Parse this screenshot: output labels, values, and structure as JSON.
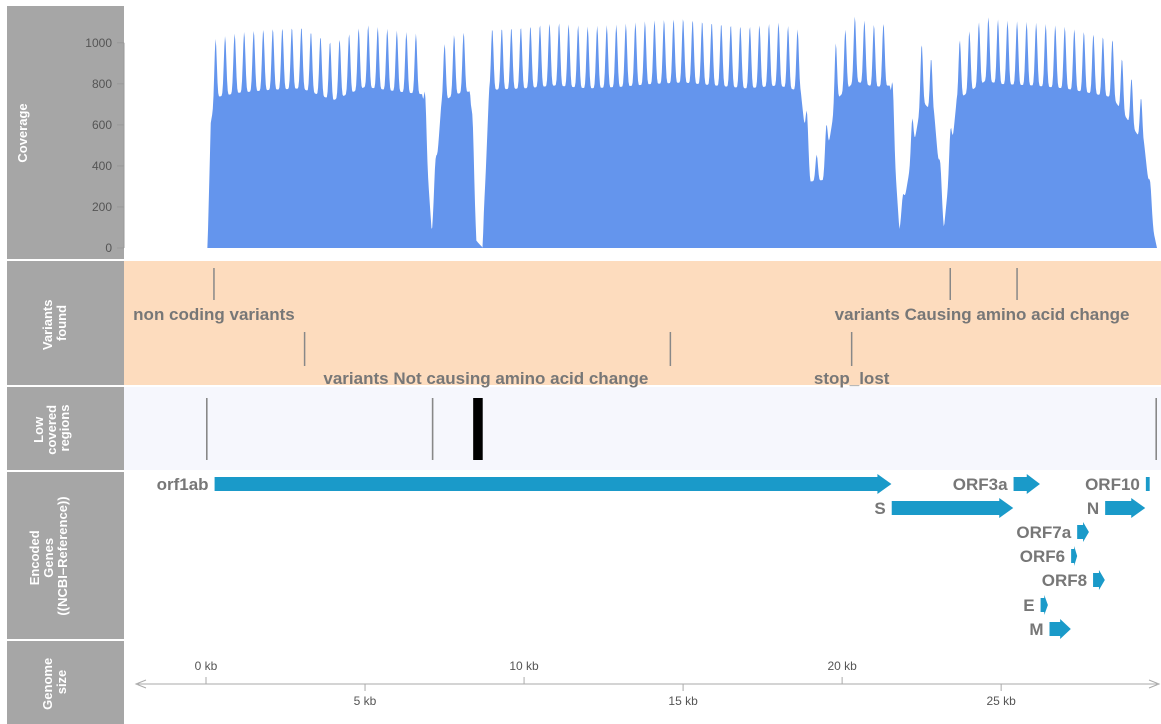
{
  "chart_data": {
    "type": "genome-track",
    "genome_length_kb": 29.9,
    "tracks": [
      {
        "id": "coverage",
        "label": "Coverage"
      },
      {
        "id": "variants",
        "label": "Variants found"
      },
      {
        "id": "lowcov",
        "label": "Low covered regions"
      },
      {
        "id": "genes",
        "label": "Encoded Genes (NCBI–Reference)"
      },
      {
        "id": "axis",
        "label": "Genome size"
      }
    ],
    "coverage": {
      "yticks": [
        0,
        200,
        400,
        600,
        800,
        1000
      ],
      "ylim": [
        0,
        1150
      ],
      "color": "#6495ED",
      "profile": [
        [
          0.0,
          0
        ],
        [
          0.05,
          0
        ],
        [
          0.15,
          850
        ],
        [
          0.3,
          1020
        ],
        [
          1,
          1050
        ],
        [
          2,
          1070
        ],
        [
          3,
          1080
        ],
        [
          4,
          1000
        ],
        [
          5,
          1090
        ],
        [
          6,
          1060
        ],
        [
          6.8,
          1040
        ],
        [
          7.1,
          100
        ],
        [
          7.4,
          980
        ],
        [
          7.8,
          1040
        ],
        [
          8.3,
          1060
        ],
        [
          8.5,
          50
        ],
        [
          8.7,
          0
        ],
        [
          8.9,
          1070
        ],
        [
          10,
          1080
        ],
        [
          11,
          1100
        ],
        [
          12,
          1080
        ],
        [
          13,
          1090
        ],
        [
          14,
          1110
        ],
        [
          15,
          1120
        ],
        [
          16,
          1100
        ],
        [
          17,
          1080
        ],
        [
          18,
          1100
        ],
        [
          18.7,
          1060
        ],
        [
          19,
          450
        ],
        [
          19.4,
          460
        ],
        [
          19.8,
          1000
        ],
        [
          20.4,
          1130
        ],
        [
          21,
          1090
        ],
        [
          21.5,
          1100
        ],
        [
          21.8,
          120
        ],
        [
          22.1,
          500
        ],
        [
          22.5,
          1000
        ],
        [
          22.9,
          900
        ],
        [
          23.2,
          130
        ],
        [
          23.6,
          1000
        ],
        [
          24.5,
          1130
        ],
        [
          25,
          1110
        ],
        [
          26,
          1100
        ],
        [
          27,
          1080
        ],
        [
          28.5,
          1020
        ],
        [
          29.5,
          700
        ],
        [
          29.8,
          100
        ],
        [
          29.9,
          0
        ]
      ]
    },
    "variants": {
      "markers": [
        {
          "pos_kb": 0.25,
          "row": 1
        },
        {
          "pos_kb": 3.1,
          "row": 2
        },
        {
          "pos_kb": 14.6,
          "row": 2
        },
        {
          "pos_kb": 20.3,
          "row": 2
        },
        {
          "pos_kb": 23.4,
          "row": 1
        },
        {
          "pos_kb": 25.5,
          "row": 1
        }
      ],
      "labels": [
        {
          "text": "non coding variants",
          "pos_kb": 0.25,
          "row": 1,
          "anchor": "middle"
        },
        {
          "text": "variants Not causing amino acid change",
          "pos_kb": 8.8,
          "row": 2,
          "anchor": "middle"
        },
        {
          "text": "variants Causing amino acid change",
          "pos_kb": 24.4,
          "row": 1,
          "anchor": "middle"
        },
        {
          "text": "stop_lost",
          "pos_kb": 20.3,
          "row": 2,
          "anchor": "middle"
        }
      ]
    },
    "low_covered_regions": [
      {
        "start_kb": 0.0,
        "end_kb": 0.05
      },
      {
        "start_kb": 7.1,
        "end_kb": 7.15
      },
      {
        "start_kb": 8.4,
        "end_kb": 8.7
      },
      {
        "start_kb": 29.85,
        "end_kb": 29.9
      }
    ],
    "genes": [
      {
        "name": "orf1ab",
        "start_kb": 0.27,
        "end_kb": 21.55,
        "row": 0,
        "label_side": "left"
      },
      {
        "name": "S",
        "start_kb": 21.56,
        "end_kb": 25.38,
        "row": 1,
        "label_side": "left"
      },
      {
        "name": "ORF3a",
        "start_kb": 25.39,
        "end_kb": 26.22,
        "row": 0,
        "label_side": "left"
      },
      {
        "name": "E",
        "start_kb": 26.24,
        "end_kb": 26.47,
        "row": 5,
        "label_side": "left"
      },
      {
        "name": "M",
        "start_kb": 26.52,
        "end_kb": 27.19,
        "row": 6,
        "label_side": "left"
      },
      {
        "name": "ORF6",
        "start_kb": 27.2,
        "end_kb": 27.39,
        "row": 3,
        "label_side": "left"
      },
      {
        "name": "ORF7a",
        "start_kb": 27.39,
        "end_kb": 27.76,
        "row": 2,
        "label_side": "left"
      },
      {
        "name": "ORF8",
        "start_kb": 27.89,
        "end_kb": 28.26,
        "row": 4,
        "label_side": "left"
      },
      {
        "name": "N",
        "start_kb": 28.27,
        "end_kb": 29.53,
        "row": 1,
        "label_side": "left"
      },
      {
        "name": "ORF10",
        "start_kb": 29.55,
        "end_kb": 29.67,
        "row": 0,
        "label_side": "left"
      }
    ],
    "axis": {
      "upper_ticks": [
        {
          "pos_kb": 0,
          "label": "0 kb"
        },
        {
          "pos_kb": 10,
          "label": "10 kb"
        },
        {
          "pos_kb": 20,
          "label": "20 kb"
        }
      ],
      "lower_ticks": [
        {
          "pos_kb": 5,
          "label": "5 kb"
        },
        {
          "pos_kb": 15,
          "label": "15 kb"
        },
        {
          "pos_kb": 25,
          "label": "25 kb"
        }
      ]
    },
    "colors": {
      "label_bg": "#A6A6A6",
      "coverage": "#6495ED",
      "variants_bg": "#FDDCBE",
      "lowcov_bg": "#F6F7FD",
      "gene": "#1A9AC9",
      "text_grey": "#777777"
    }
  }
}
